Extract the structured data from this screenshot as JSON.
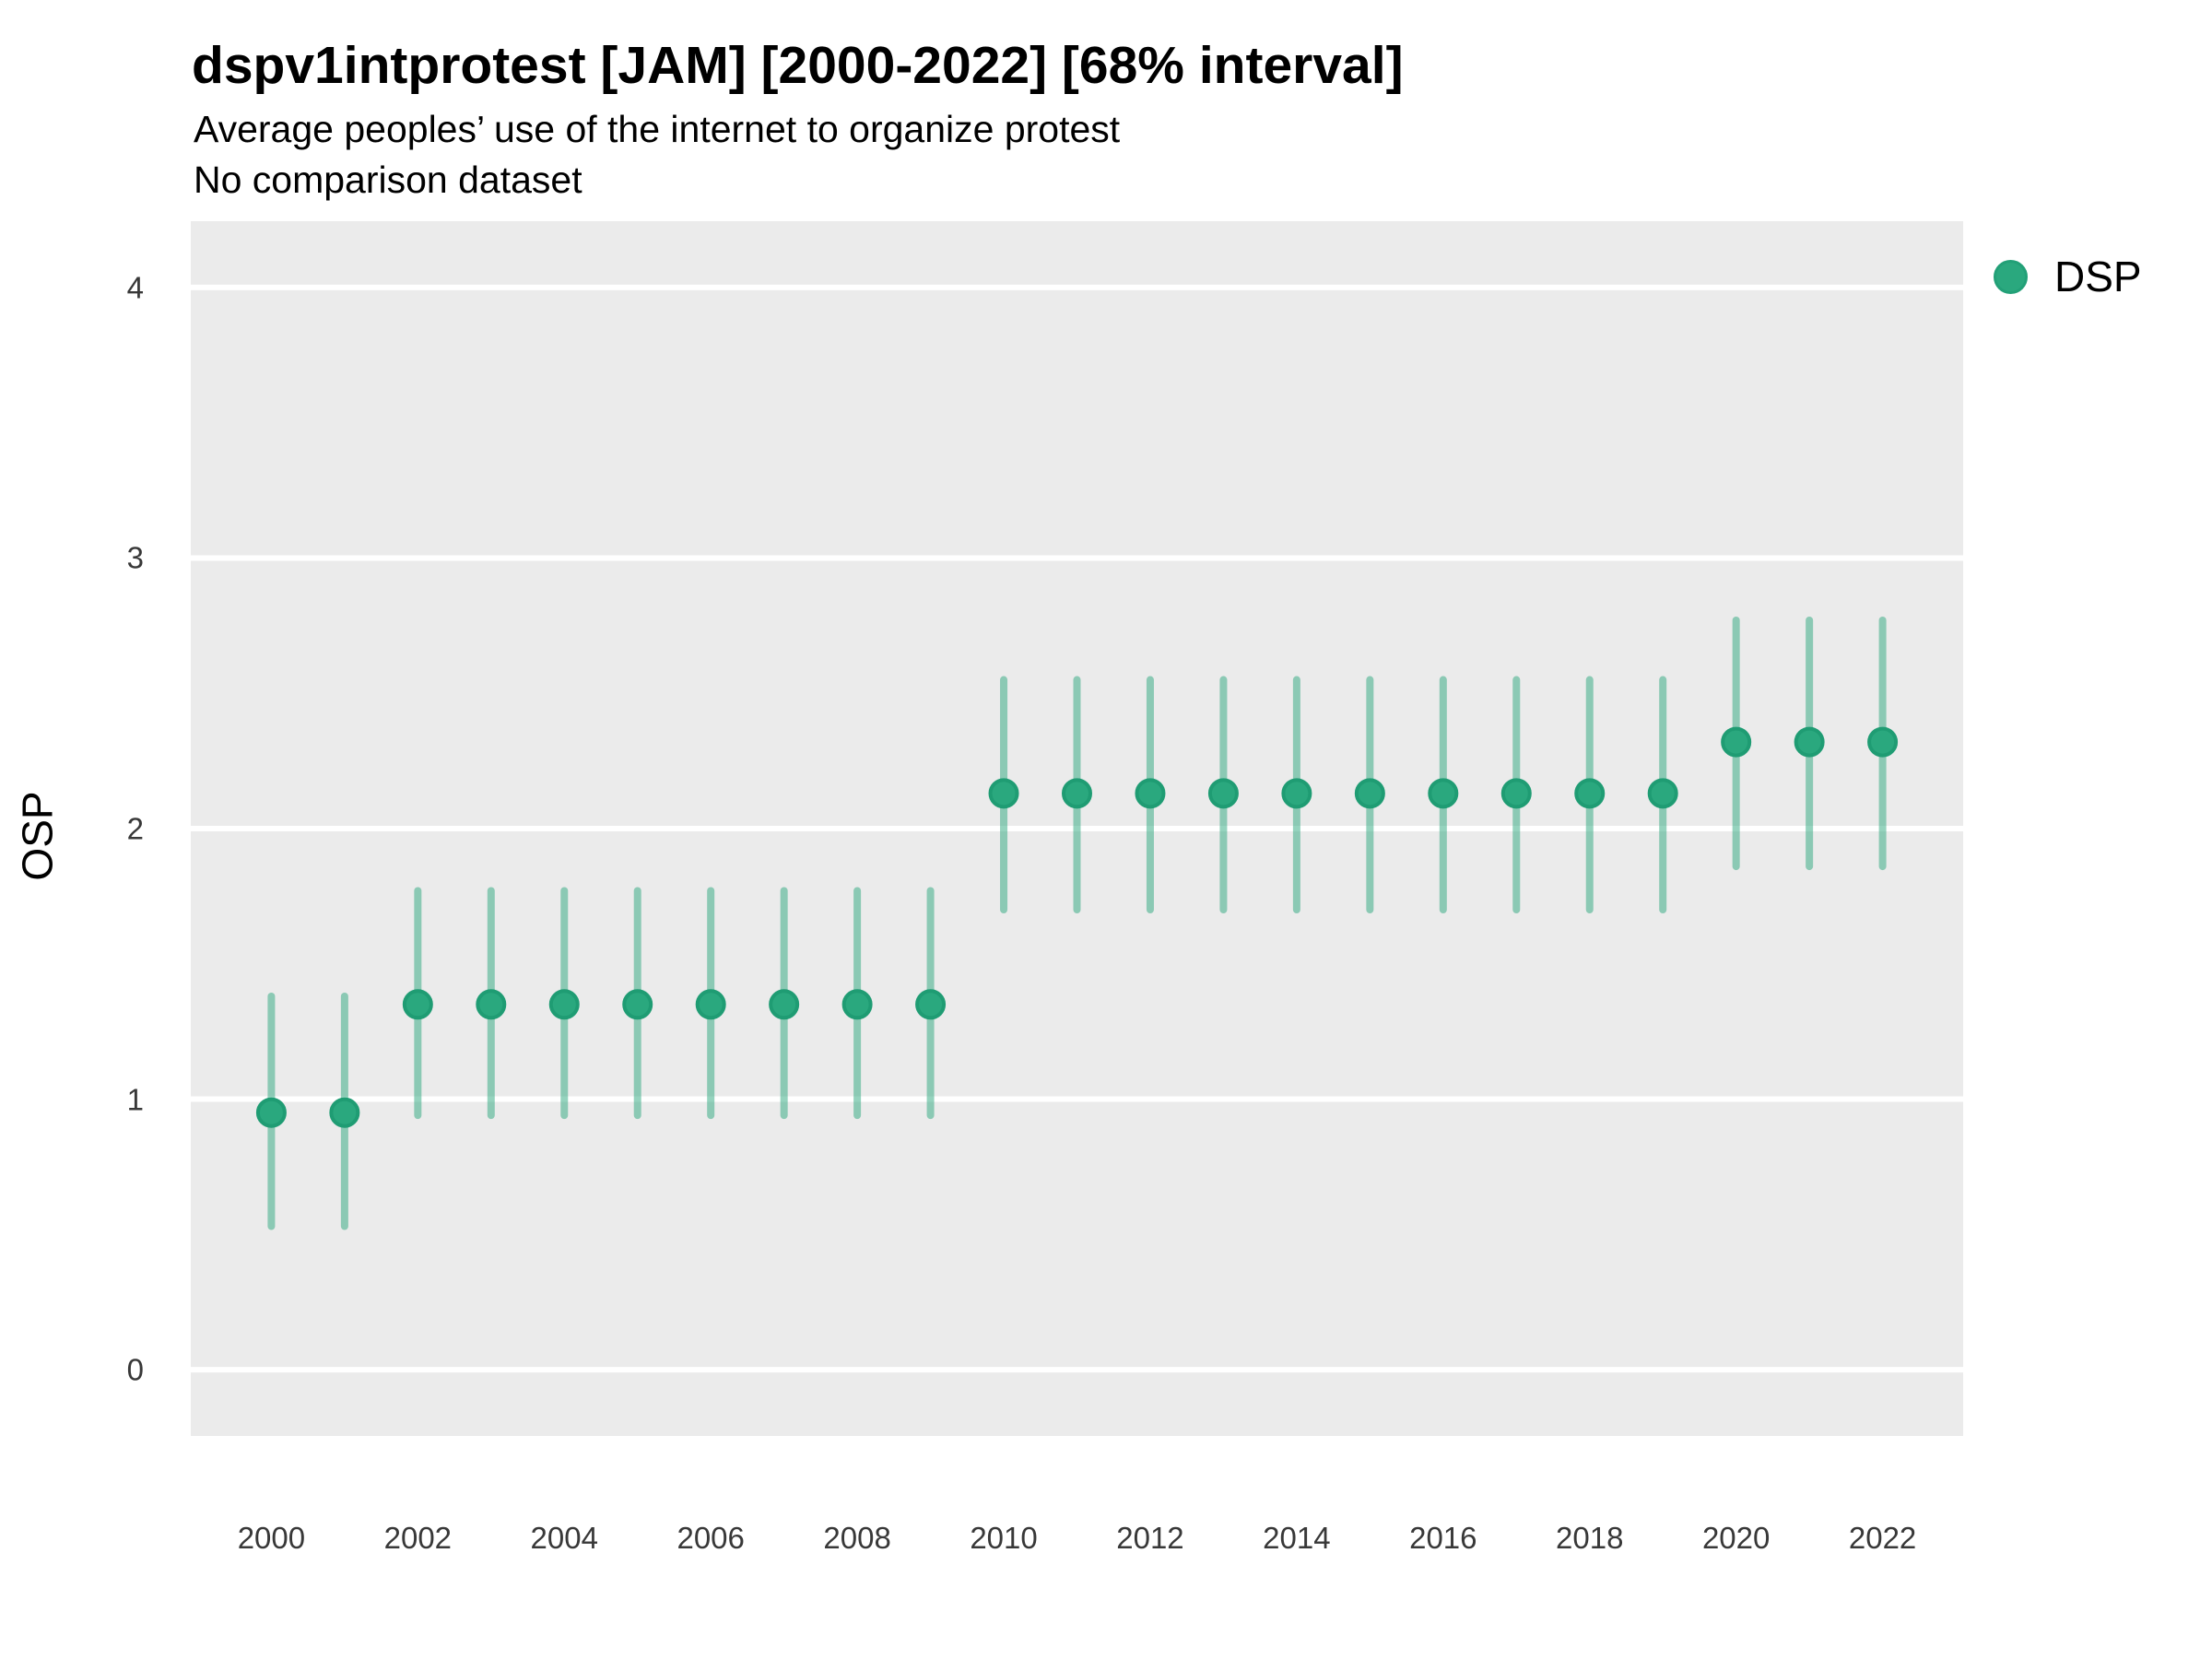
{
  "colors": {
    "background": "#ffffff",
    "panel": "#ebebeb",
    "gridline": "#ffffff",
    "point_fill": "#2aa87e",
    "point_stroke": "#1f9c73",
    "interval": "rgba(43,168,126,0.5)",
    "tick_text": "#383838",
    "text": "#000000"
  },
  "legend": {
    "items": [
      {
        "label": "DSP",
        "color": "#2aa87e"
      }
    ]
  },
  "chart_data": {
    "type": "scatter",
    "variant": "pointrange",
    "title": "dspv1intprotest [JAM] [2000-2022] [68% interval]",
    "subtitle": "Average peoples’ use of the internet to organize protest",
    "note": "No comparison dataset",
    "xlabel": "",
    "ylabel": "OSP",
    "interval_label": "68% interval",
    "x": [
      2000,
      2001,
      2002,
      2003,
      2004,
      2005,
      2006,
      2007,
      2008,
      2009,
      2010,
      2011,
      2012,
      2013,
      2014,
      2015,
      2016,
      2017,
      2018,
      2019,
      2020,
      2021,
      2022
    ],
    "series": [
      {
        "name": "DSP",
        "values": [
          0.95,
          0.95,
          1.35,
          1.35,
          1.35,
          1.35,
          1.35,
          1.35,
          1.35,
          1.35,
          2.13,
          2.13,
          2.13,
          2.13,
          2.13,
          2.13,
          2.13,
          2.13,
          2.13,
          2.13,
          2.32,
          2.32,
          2.32
        ],
        "lower": [
          0.53,
          0.53,
          0.94,
          0.94,
          0.94,
          0.94,
          0.94,
          0.94,
          0.94,
          0.94,
          1.7,
          1.7,
          1.7,
          1.7,
          1.7,
          1.7,
          1.7,
          1.7,
          1.7,
          1.7,
          1.86,
          1.86,
          1.86
        ],
        "upper": [
          1.38,
          1.38,
          1.77,
          1.77,
          1.77,
          1.77,
          1.77,
          1.77,
          1.77,
          1.77,
          2.55,
          2.55,
          2.55,
          2.55,
          2.55,
          2.55,
          2.55,
          2.55,
          2.55,
          2.55,
          2.77,
          2.77,
          2.77
        ]
      }
    ],
    "xticks": [
      2000,
      2002,
      2004,
      2006,
      2008,
      2010,
      2012,
      2014,
      2016,
      2018,
      2020,
      2022
    ],
    "yticks": [
      0,
      1,
      2,
      3,
      4
    ],
    "xlim": [
      1998.9,
      2023.1
    ],
    "ylim": [
      -0.245,
      4.245
    ],
    "grid": "horizontal-major-only",
    "legend_position": "right-top"
  }
}
